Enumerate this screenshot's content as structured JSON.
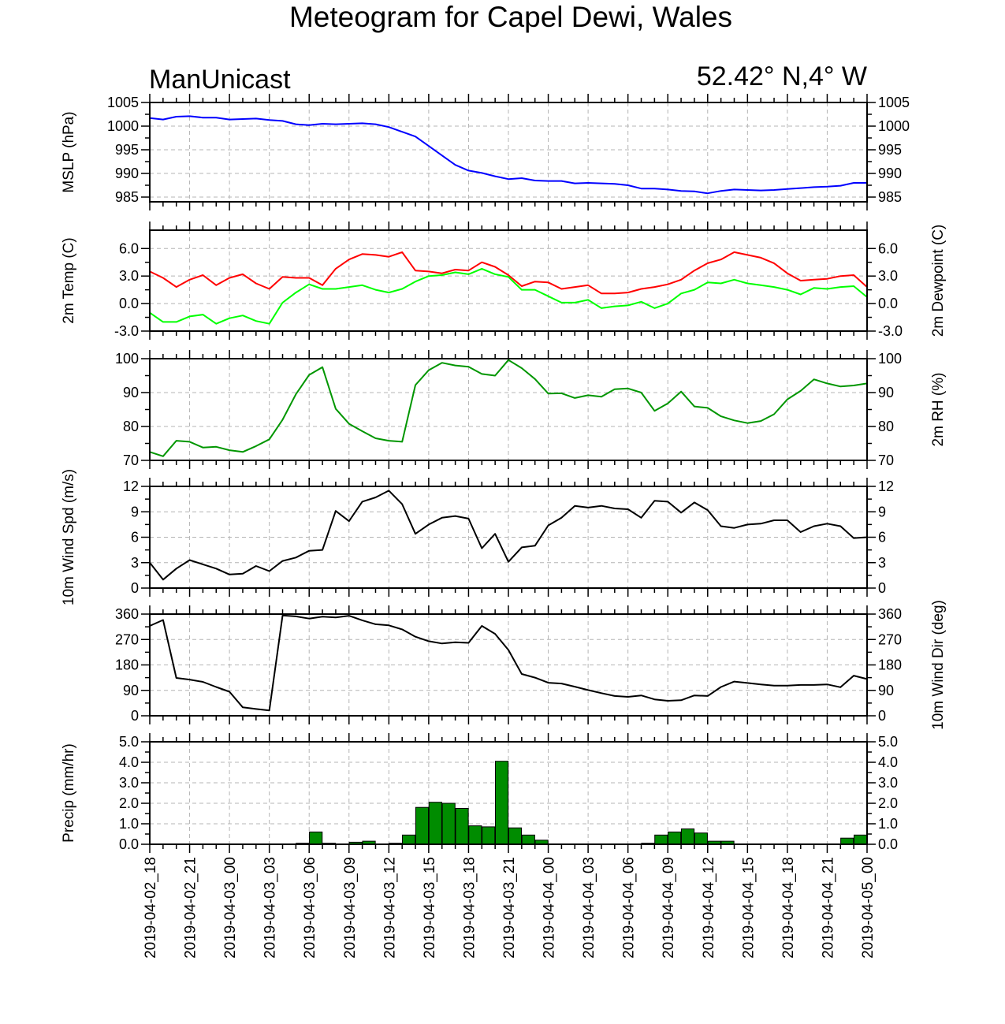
{
  "title": "Meteogram for Capel Dewi, Wales",
  "subtitle_left": "ManUnicast",
  "subtitle_right": "52.42° N,4° W",
  "colors": {
    "mslp": "#0000ff",
    "temp": "#ff0000",
    "dewpoint": "#00ff00",
    "rh": "#009600",
    "wind_speed": "#000000",
    "wind_dir": "#000000",
    "precip_fill": "#008c00",
    "grid": "#b4b4b4"
  },
  "chart_data": [
    {
      "type": "line",
      "id": "mslp",
      "left_label": "MSLP (hPa)",
      "right_label": "",
      "ylim": [
        984,
        1005
      ],
      "yticks": [
        "1005",
        "1000",
        "995",
        "990",
        "985"
      ],
      "ytick_values": [
        1005,
        1000,
        995,
        990,
        985
      ],
      "series": [
        {
          "color_key": "mslp",
          "x": [
            0,
            1,
            2,
            3,
            4,
            5,
            6,
            7,
            8,
            9,
            10,
            11,
            12,
            13,
            14,
            15,
            16,
            17,
            18,
            19,
            20,
            21,
            22,
            23,
            24,
            25,
            26,
            27,
            28,
            29,
            30,
            31,
            32,
            33,
            34,
            35,
            36,
            37,
            38,
            39,
            40,
            41,
            42,
            43,
            44,
            45,
            46,
            47,
            48,
            49,
            50,
            51,
            52,
            53,
            54
          ],
          "values": [
            1001.7,
            1001.4,
            1002.0,
            1002.1,
            1001.8,
            1001.8,
            1001.4,
            1001.5,
            1001.6,
            1001.3,
            1001.1,
            1000.4,
            1000.2,
            1000.5,
            1000.4,
            1000.5,
            1000.6,
            1000.4,
            999.8,
            998.8,
            997.8,
            995.8,
            993.8,
            991.8,
            990.6,
            990.1,
            989.4,
            988.8,
            989.0,
            988.5,
            988.4,
            988.4,
            987.9,
            988.0,
            987.9,
            987.8,
            987.5,
            986.8,
            986.8,
            986.6,
            986.3,
            986.2,
            985.8,
            986.3,
            986.6,
            986.5,
            986.4,
            986.5,
            986.7,
            986.9,
            987.1,
            987.2,
            987.4,
            988.0,
            988.0
          ]
        }
      ]
    },
    {
      "type": "line",
      "id": "temp",
      "left_label": "2m Temp (C)",
      "right_label": "2m Dewpoint (C)",
      "ylim": [
        -3,
        8
      ],
      "yticks": [
        "6.0",
        "3.0",
        "0.0",
        "-3.0"
      ],
      "ytick_values": [
        6,
        3,
        0,
        -3
      ],
      "series": [
        {
          "color_key": "temp",
          "x": [
            0,
            1,
            2,
            3,
            4,
            5,
            6,
            7,
            8,
            9,
            10,
            11,
            12,
            13,
            14,
            15,
            16,
            17,
            18,
            19,
            20,
            21,
            22,
            23,
            24,
            25,
            26,
            27,
            28,
            29,
            30,
            31,
            32,
            33,
            34,
            35,
            36,
            37,
            38,
            39,
            40,
            41,
            42,
            43,
            44,
            45,
            46,
            47,
            48,
            49,
            50,
            51,
            52,
            53,
            54
          ],
          "values": [
            3.5,
            2.8,
            1.8,
            2.6,
            3.1,
            2.0,
            2.8,
            3.2,
            2.2,
            1.6,
            2.9,
            2.8,
            2.8,
            2.0,
            3.8,
            4.8,
            5.4,
            5.3,
            5.1,
            5.6,
            3.6,
            3.5,
            3.3,
            3.7,
            3.6,
            4.5,
            4.0,
            3.1,
            1.9,
            2.4,
            2.3,
            1.6,
            1.8,
            2.0,
            1.1,
            1.1,
            1.2,
            1.6,
            1.8,
            2.1,
            2.6,
            3.6,
            4.4,
            4.8,
            5.6,
            5.3,
            5.0,
            4.4,
            3.3,
            2.5,
            2.6,
            2.7,
            3.0,
            3.1,
            1.8
          ]
        },
        {
          "color_key": "dewpoint",
          "x": [
            0,
            1,
            2,
            3,
            4,
            5,
            6,
            7,
            8,
            9,
            10,
            11,
            12,
            13,
            14,
            15,
            16,
            17,
            18,
            19,
            20,
            21,
            22,
            23,
            24,
            25,
            26,
            27,
            28,
            29,
            30,
            31,
            32,
            33,
            34,
            35,
            36,
            37,
            38,
            39,
            40,
            41,
            42,
            43,
            44,
            45,
            46,
            47,
            48,
            49,
            50,
            51,
            52,
            53,
            54
          ],
          "values": [
            -1.0,
            -2.0,
            -2.0,
            -1.4,
            -1.2,
            -2.2,
            -1.6,
            -1.3,
            -1.9,
            -2.2,
            0.1,
            1.2,
            2.1,
            1.6,
            1.6,
            1.8,
            2.0,
            1.5,
            1.2,
            1.6,
            2.4,
            3.0,
            3.1,
            3.4,
            3.2,
            3.8,
            3.2,
            2.9,
            1.5,
            1.5,
            0.8,
            0.1,
            0.1,
            0.4,
            -0.5,
            -0.3,
            -0.2,
            0.2,
            -0.5,
            0.0,
            1.1,
            1.5,
            2.3,
            2.2,
            2.6,
            2.2,
            2.0,
            1.8,
            1.5,
            1.0,
            1.7,
            1.6,
            1.8,
            1.9,
            0.7
          ]
        }
      ]
    },
    {
      "type": "line",
      "id": "rh",
      "left_label": "",
      "right_label": "2m RH (%)",
      "ylim": [
        70,
        100
      ],
      "yticks": [
        "100",
        "90",
        "80",
        "70"
      ],
      "ytick_values": [
        100,
        90,
        80,
        70
      ],
      "series": [
        {
          "color_key": "rh",
          "x": [
            0,
            1,
            2,
            3,
            4,
            5,
            6,
            7,
            8,
            9,
            10,
            11,
            12,
            13,
            14,
            15,
            16,
            17,
            18,
            19,
            20,
            21,
            22,
            23,
            24,
            25,
            26,
            27,
            28,
            29,
            30,
            31,
            32,
            33,
            34,
            35,
            36,
            37,
            38,
            39,
            40,
            41,
            42,
            43,
            44,
            45,
            46,
            47,
            48,
            49,
            50,
            51,
            52,
            53,
            54
          ],
          "values": [
            72.5,
            71.2,
            75.8,
            75.5,
            73.8,
            74.0,
            73.0,
            72.5,
            74.2,
            76.2,
            82.0,
            89.5,
            95.2,
            97.5,
            85.2,
            80.8,
            78.6,
            76.5,
            75.8,
            75.5,
            92.2,
            96.6,
            98.8,
            98.0,
            97.6,
            95.5,
            95.0,
            99.6,
            97.2,
            94.0,
            89.7,
            89.8,
            88.4,
            89.2,
            88.8,
            91.0,
            91.2,
            90.0,
            84.6,
            86.8,
            90.3,
            85.9,
            85.5,
            83.0,
            81.8,
            81.0,
            81.6,
            83.6,
            88.0,
            90.5,
            93.9,
            92.7,
            91.8,
            92.1,
            92.7
          ]
        }
      ]
    },
    {
      "type": "line",
      "id": "wind_speed",
      "left_label": "10m Wind Spd (m/s)",
      "right_label": "",
      "ylim": [
        0,
        12
      ],
      "yticks": [
        "12",
        "9",
        "6",
        "3",
        "0"
      ],
      "ytick_values": [
        12,
        9,
        6,
        3,
        0
      ],
      "series": [
        {
          "color_key": "wind_speed",
          "x": [
            0,
            1,
            2,
            3,
            4,
            5,
            6,
            7,
            8,
            9,
            10,
            11,
            12,
            13,
            14,
            15,
            16,
            17,
            18,
            19,
            20,
            21,
            22,
            23,
            24,
            25,
            26,
            27,
            28,
            29,
            30,
            31,
            32,
            33,
            34,
            35,
            36,
            37,
            38,
            39,
            40,
            41,
            42,
            43,
            44,
            45,
            46,
            47,
            48,
            49,
            50,
            51,
            52,
            53,
            54
          ],
          "values": [
            3.0,
            1.0,
            2.3,
            3.3,
            2.8,
            2.3,
            1.6,
            1.7,
            2.6,
            2.0,
            3.2,
            3.6,
            4.4,
            4.5,
            9.1,
            7.9,
            10.2,
            10.7,
            11.5,
            9.9,
            6.4,
            7.5,
            8.3,
            8.5,
            8.2,
            4.7,
            6.4,
            3.1,
            4.8,
            5.0,
            7.4,
            8.3,
            9.7,
            9.5,
            9.7,
            9.4,
            9.3,
            8.3,
            10.3,
            10.2,
            8.9,
            10.1,
            9.2,
            7.3,
            7.1,
            7.5,
            7.6,
            8.0,
            8.0,
            6.6,
            7.3,
            7.6,
            7.3,
            5.9,
            6.0
          ]
        }
      ]
    },
    {
      "type": "line",
      "id": "wind_dir",
      "left_label": "",
      "right_label": "10m Wind Dir (deg)",
      "ylim": [
        0,
        360
      ],
      "yticks": [
        "360",
        "270",
        "180",
        "90",
        "0"
      ],
      "ytick_values": [
        360,
        270,
        180,
        90,
        0
      ],
      "series": [
        {
          "color_key": "wind_dir",
          "x": [
            0,
            1,
            2,
            3,
            4,
            5,
            6,
            7,
            8,
            9,
            10,
            11,
            12,
            13,
            14,
            15,
            16,
            17,
            18,
            19,
            20,
            21,
            22,
            23,
            24,
            25,
            26,
            27,
            28,
            29,
            30,
            31,
            32,
            33,
            34,
            35,
            36,
            37,
            38,
            39,
            40,
            41,
            42,
            43,
            44,
            45,
            46,
            47,
            48,
            49,
            50,
            51,
            52,
            53,
            54
          ],
          "values": [
            318,
            339,
            134,
            128,
            120,
            102,
            85,
            30,
            24,
            19,
            355,
            352,
            344,
            351,
            348,
            354,
            338,
            324,
            320,
            306,
            280,
            264,
            256,
            260,
            258,
            318,
            290,
            233,
            148,
            135,
            117,
            114,
            103,
            91,
            80,
            70,
            67,
            72,
            58,
            53,
            55,
            72,
            70,
            102,
            121,
            116,
            111,
            107,
            107,
            109,
            109,
            111,
            101,
            142,
            130
          ]
        }
      ]
    },
    {
      "type": "bar",
      "id": "precip",
      "left_label": "Precip (mm/hr)",
      "right_label": "",
      "ylim": [
        0,
        5
      ],
      "yticks": [
        "5.0",
        "4.0",
        "3.0",
        "2.0",
        "1.0",
        "0.0"
      ],
      "ytick_values": [
        5,
        4,
        3,
        2,
        1,
        0
      ],
      "series": [
        {
          "color_key": "precip_fill",
          "x": [
            0,
            1,
            2,
            3,
            4,
            5,
            6,
            7,
            8,
            9,
            10,
            11,
            12,
            13,
            14,
            15,
            16,
            17,
            18,
            19,
            20,
            21,
            22,
            23,
            24,
            25,
            26,
            27,
            28,
            29,
            30,
            31,
            32,
            33,
            34,
            35,
            36,
            37,
            38,
            39,
            40,
            41,
            42,
            43,
            44,
            45,
            46,
            47,
            48,
            49,
            50,
            51,
            52,
            53,
            54
          ],
          "values": [
            0,
            0,
            0,
            0,
            0,
            0,
            0,
            0,
            0,
            0,
            0,
            0.05,
            0.6,
            0.05,
            0,
            0.1,
            0.15,
            0,
            0.05,
            0.45,
            1.8,
            2.05,
            2.0,
            1.75,
            0.9,
            0.85,
            4.05,
            0.8,
            0.45,
            0.2,
            0,
            0,
            0,
            0,
            0,
            0,
            0,
            0.05,
            0.45,
            0.6,
            0.75,
            0.55,
            0.15,
            0.15,
            0,
            0,
            0,
            0,
            0,
            0,
            0,
            0,
            0.3,
            0.45,
            0
          ]
        }
      ]
    }
  ],
  "x_axis": {
    "xlim": [
      0,
      54
    ],
    "tick_values": [
      0,
      3,
      6,
      9,
      12,
      15,
      18,
      21,
      24,
      27,
      30,
      33,
      36,
      39,
      42,
      45,
      48,
      51,
      54
    ],
    "tick_labels": [
      "2019-04-02_18",
      "2019-04-02_21",
      "2019-04-03_00",
      "2019-04-03_03",
      "2019-04-03_06",
      "2019-04-03_09",
      "2019-04-03_12",
      "2019-04-03_15",
      "2019-04-03_18",
      "2019-04-03_21",
      "2019-04-04_00",
      "2019-04-04_03",
      "2019-04-04_06",
      "2019-04-04_09",
      "2019-04-04_12",
      "2019-04-04_15",
      "2019-04-04_18",
      "2019-04-04_21",
      "2019-04-05_00"
    ],
    "grid": true
  }
}
